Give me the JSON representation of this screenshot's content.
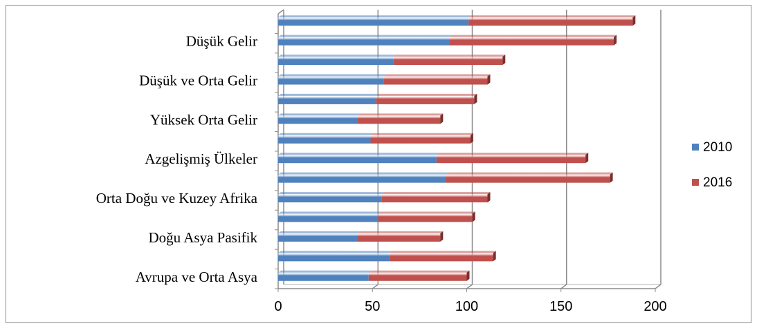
{
  "chart_data": {
    "type": "bar",
    "orientation": "horizontal",
    "stacked": true,
    "categories": [
      "Avrupa ve Orta Asya",
      "",
      "Doğu Asya Pasifik",
      "",
      "Orta Doğu ve Kuzey Afrika",
      "",
      "Azgelişmiş Ülkeler",
      "",
      "Yüksek Orta Gelir",
      "",
      "Düşük ve Orta Gelir",
      "",
      "Düşük Gelir",
      ""
    ],
    "series": [
      {
        "name": "2010",
        "color": "#4f81bd",
        "values": [
          48,
          59,
          42,
          53,
          55,
          89,
          84,
          49,
          42,
          52,
          56,
          61,
          91,
          101
        ]
      },
      {
        "name": "2016",
        "color": "#c0504d",
        "values": [
          52,
          55,
          44,
          50,
          56,
          87,
          79,
          53,
          44,
          52,
          55,
          58,
          87,
          87
        ]
      }
    ],
    "xlim": [
      0,
      200
    ],
    "xticks": [
      0,
      50,
      100,
      150,
      200
    ],
    "grid": true,
    "legend_position": "right"
  }
}
